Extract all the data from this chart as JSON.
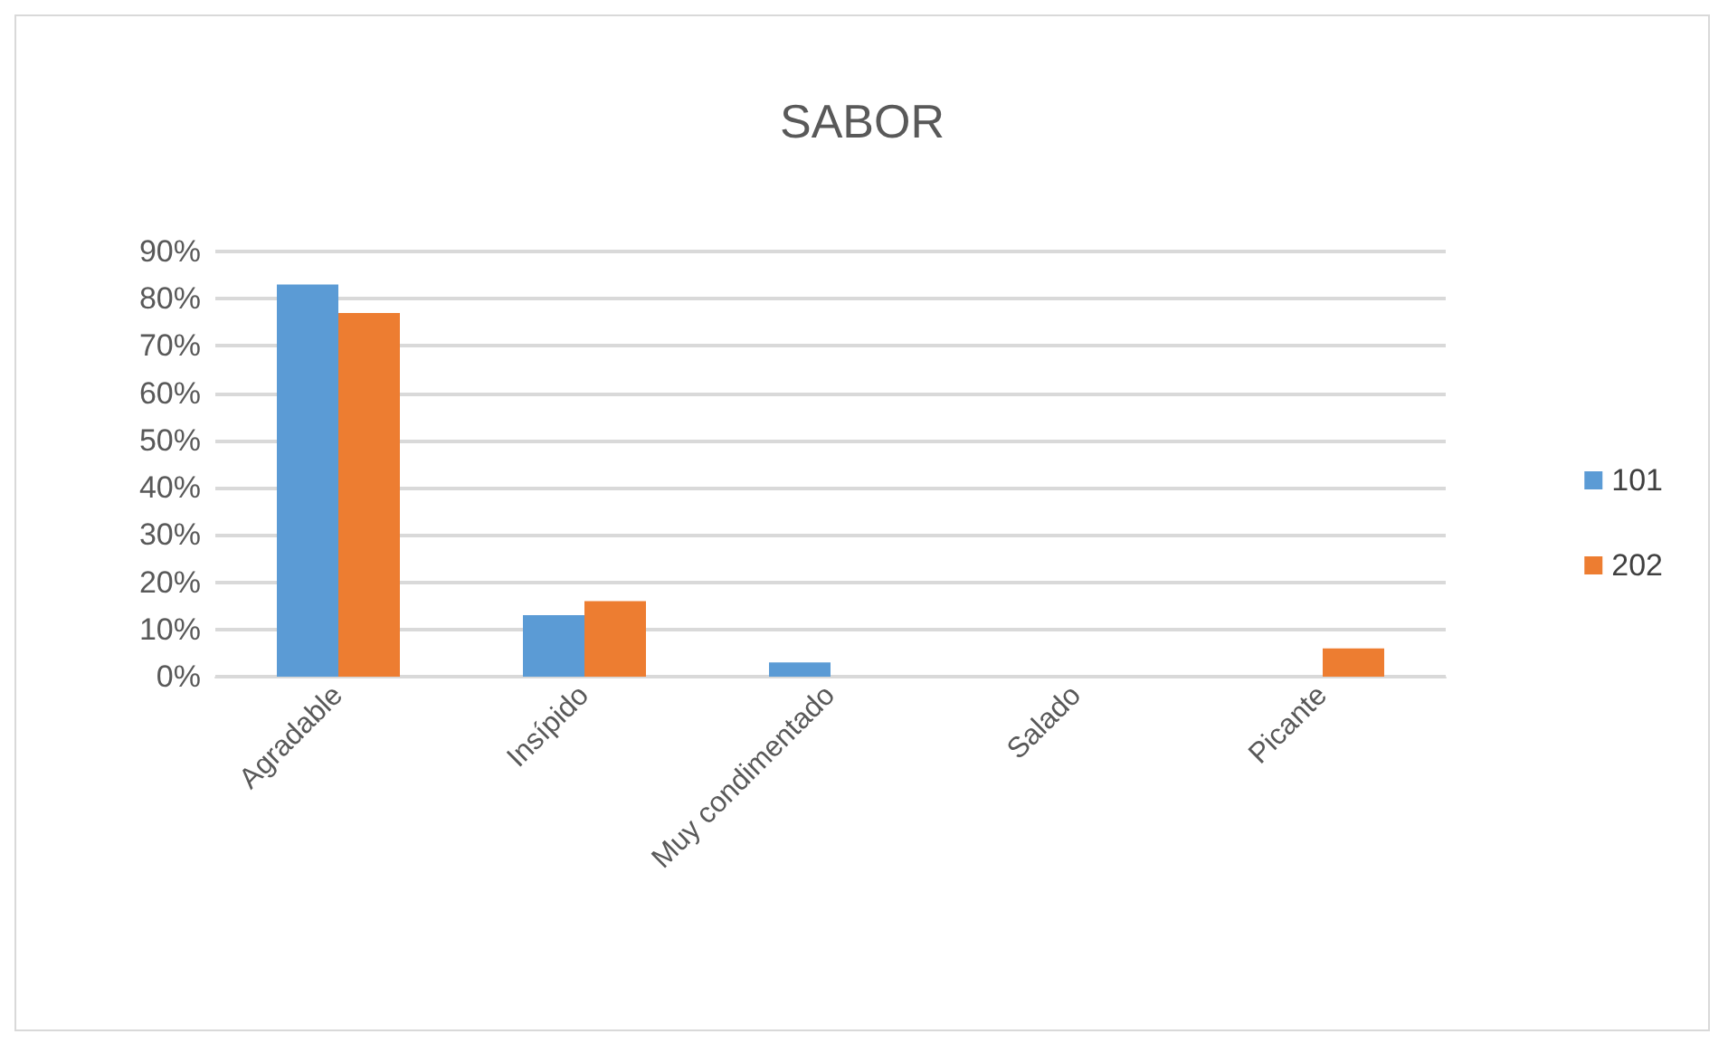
{
  "chart_data": {
    "type": "bar",
    "title": "SABOR",
    "categories": [
      "Agradable",
      "Insípido",
      "Muy condimentado",
      "Salado",
      "Picante"
    ],
    "series": [
      {
        "name": "101",
        "color": "#5b9bd5",
        "values": [
          83,
          13,
          3,
          0,
          0
        ]
      },
      {
        "name": "202",
        "color": "#ed7d31",
        "values": [
          77,
          16,
          0,
          0,
          6
        ]
      }
    ],
    "ylim": [
      0,
      90
    ],
    "yticks": [
      {
        "value": 0,
        "label": "0%"
      },
      {
        "value": 10,
        "label": "10%"
      },
      {
        "value": 20,
        "label": "20%"
      },
      {
        "value": 30,
        "label": "30%"
      },
      {
        "value": 40,
        "label": "40%"
      },
      {
        "value": 50,
        "label": "50%"
      },
      {
        "value": 60,
        "label": "60%"
      },
      {
        "value": 70,
        "label": "70%"
      },
      {
        "value": 80,
        "label": "80%"
      },
      {
        "value": 90,
        "label": "90%"
      }
    ],
    "grid": "y",
    "legend": "right"
  }
}
